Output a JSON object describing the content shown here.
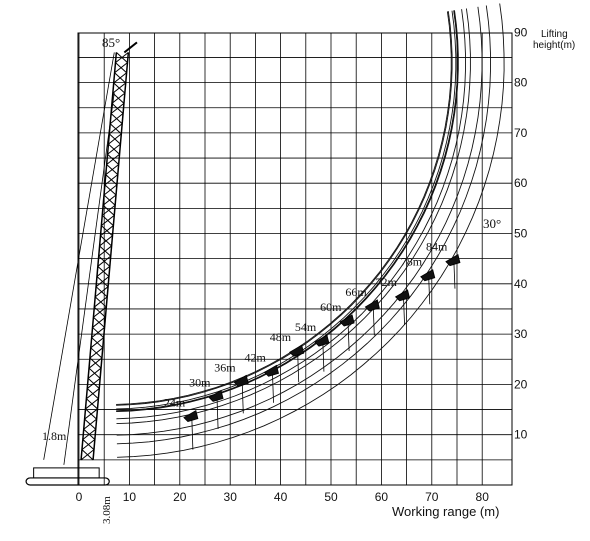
{
  "chart_data": {
    "type": "diagram",
    "title": "",
    "xlabel": "Working range (m)",
    "ylabel": "Lifting height(m)",
    "xlim": [
      -5,
      85
    ],
    "ylim": [
      0,
      90
    ],
    "x_ticks": [
      "0",
      "10",
      "20",
      "30",
      "40",
      "50",
      "60",
      "70",
      "80"
    ],
    "y_ticks": [
      "10",
      "20",
      "30",
      "40",
      "50",
      "60",
      "70",
      "80",
      "90"
    ],
    "main_boom_angle": "85°",
    "jib_angle": "30°",
    "pivot_offset": "1.8m",
    "base_offset": "3.08m",
    "jib_lengths": [
      "24m",
      "30m",
      "36m",
      "42m",
      "48m",
      "54m",
      "60m",
      "66m",
      "72m",
      "78m",
      "84m"
    ],
    "jib_tip_points": [
      {
        "label": "24m",
        "x": 22,
        "y": 14
      },
      {
        "label": "30m",
        "x": 27,
        "y": 18
      },
      {
        "label": "36m",
        "x": 32,
        "y": 21
      },
      {
        "label": "42m",
        "x": 38,
        "y": 23
      },
      {
        "label": "48m",
        "x": 43,
        "y": 27
      },
      {
        "label": "54m",
        "x": 48,
        "y": 29
      },
      {
        "label": "60m",
        "x": 53,
        "y": 33
      },
      {
        "label": "66m",
        "x": 58,
        "y": 36
      },
      {
        "label": "72m",
        "x": 64,
        "y": 38
      },
      {
        "label": "78m",
        "x": 69,
        "y": 42
      },
      {
        "label": "84m",
        "x": 74,
        "y": 45
      }
    ]
  },
  "axis": {
    "ylabel_line1": "Lifting",
    "ylabel_line2": "height(m)"
  }
}
